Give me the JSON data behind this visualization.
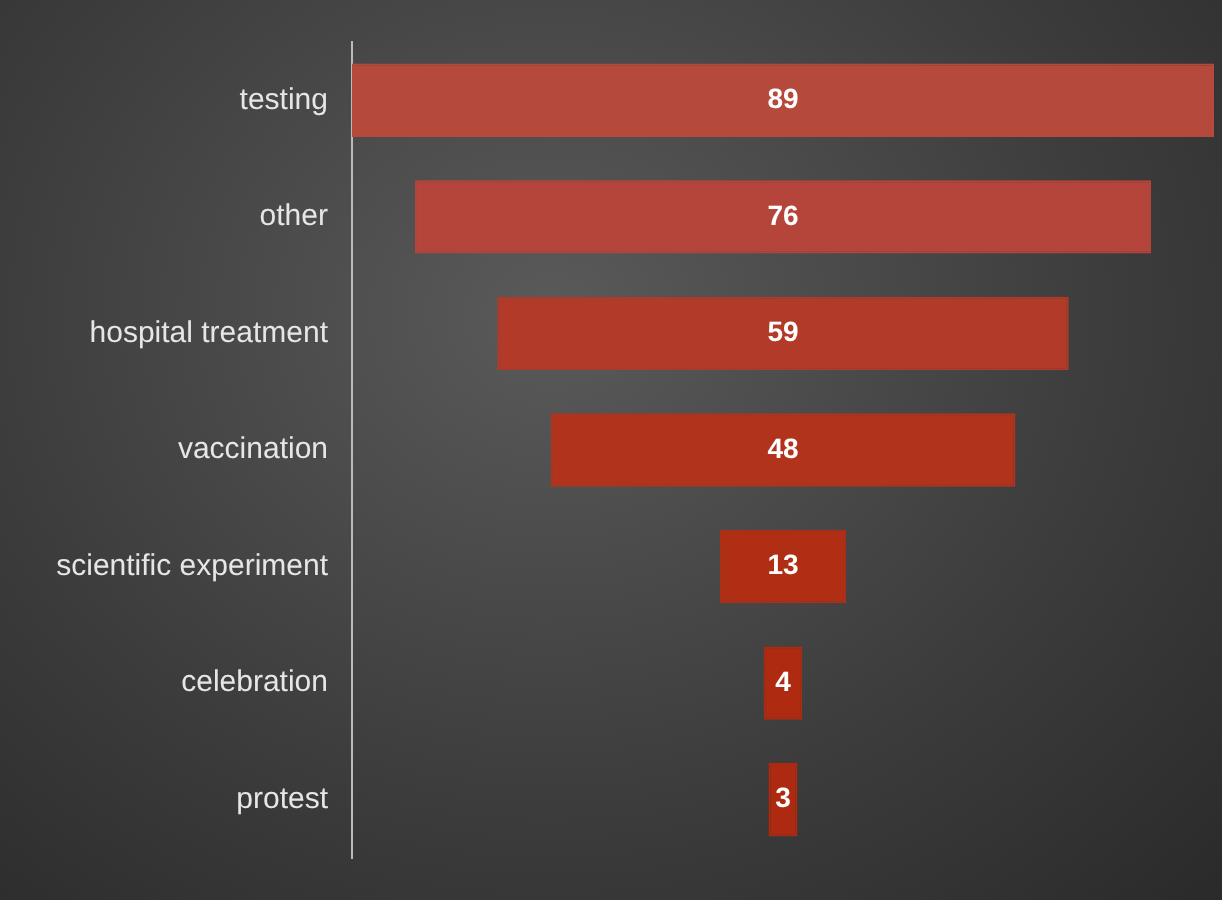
{
  "chart_data": {
    "type": "other",
    "categories": [
      "testing",
      "other",
      "hospital treatment",
      "vaccination",
      "scientific experiment",
      "celebration",
      "protest"
    ],
    "values": [
      89,
      76,
      59,
      48,
      13,
      4,
      3
    ],
    "colors": [
      "#b54a3c",
      "#b5453a",
      "#b23a28",
      "#b2331c",
      "#b02e14",
      "#ae2a10",
      "#ad2a10"
    ],
    "data_labels": true
  }
}
